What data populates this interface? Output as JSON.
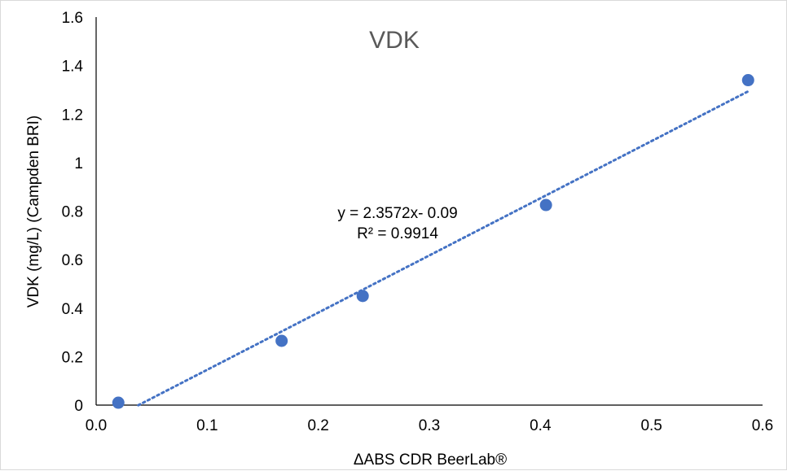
{
  "chart_data": {
    "type": "scatter",
    "title": "VDK",
    "xlabel": "ΔABS CDR BeerLab®",
    "ylabel": "VDK (mg/L) (Campden BRI)",
    "xlim": [
      0,
      0.6
    ],
    "ylim": [
      0,
      1.6
    ],
    "x_ticks": [
      "0.0",
      "0.1",
      "0.2",
      "0.3",
      "0.4",
      "0.5",
      "0.6"
    ],
    "y_ticks": [
      "0",
      "0.2",
      "0.4",
      "0.6",
      "0.8",
      "1",
      "1.2",
      "1.4",
      "1.6"
    ],
    "grid": false,
    "legend": "none",
    "series": [
      {
        "points": [
          {
            "x": 0.02,
            "y": 0.01
          },
          {
            "x": 0.167,
            "y": 0.265
          },
          {
            "x": 0.24,
            "y": 0.45
          },
          {
            "x": 0.405,
            "y": 0.825
          },
          {
            "x": 0.587,
            "y": 1.34
          }
        ]
      }
    ],
    "trendline": {
      "type": "linear",
      "slope": 2.3572,
      "intercept": -0.09,
      "x_range": [
        0.038,
        0.587
      ],
      "equation": "y = 2.3572x- 0.09",
      "r_squared": "R² = 0.9914"
    },
    "colors": {
      "marker": "#4472C4",
      "trendline": "#4472C4",
      "axis": "#000000",
      "title": "#595959"
    }
  }
}
